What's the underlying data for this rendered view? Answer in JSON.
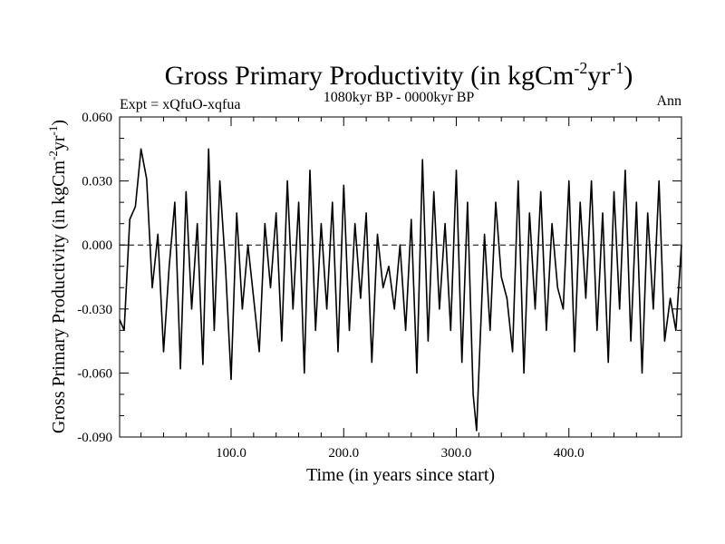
{
  "chart_data": {
    "type": "line",
    "title_main": "Gross Primary Productivity (in kgCm",
    "title_sup1": "-2",
    "title_mid": "yr",
    "title_sup2": "-1",
    "title_end": ")",
    "subtitle": "1080kyr BP - 0000kyr BP",
    "left_label": "Expt = xQfuO-xqfua",
    "right_label": "Ann",
    "xlabel": "Time (in years since start)",
    "ylabel_main": "Gross Primary Productivity (in kgCm",
    "ylabel_sup1": "-2",
    "ylabel_mid": "yr",
    "ylabel_sup2": "-1",
    "ylabel_end": ")",
    "xlim": [
      1,
      500
    ],
    "ylim": [
      -0.09,
      0.06
    ],
    "xticks": [
      100.0,
      200.0,
      300.0,
      400.0
    ],
    "xtick_labels": [
      "100.0",
      "200.0",
      "300.0",
      "400.0"
    ],
    "yticks": [
      0.06,
      0.03,
      0.0,
      -0.03,
      -0.06,
      -0.09
    ],
    "ytick_labels": [
      "0.060",
      "0.030",
      "0.000",
      "-0.030",
      "-0.060",
      "-0.090"
    ],
    "reference_line": 0.0,
    "series": [
      {
        "name": "Ann",
        "color": "#000000",
        "x": [
          1,
          5,
          10,
          15,
          20,
          25,
          30,
          35,
          40,
          45,
          50,
          55,
          60,
          65,
          70,
          75,
          80,
          85,
          90,
          95,
          100,
          105,
          110,
          115,
          120,
          125,
          130,
          135,
          140,
          145,
          150,
          155,
          160,
          165,
          170,
          175,
          180,
          185,
          190,
          195,
          200,
          205,
          210,
          215,
          220,
          225,
          230,
          235,
          240,
          245,
          250,
          255,
          260,
          265,
          270,
          275,
          280,
          285,
          290,
          295,
          300,
          305,
          310,
          315,
          318,
          320,
          325,
          330,
          335,
          340,
          345,
          350,
          355,
          360,
          365,
          370,
          375,
          380,
          385,
          390,
          395,
          400,
          405,
          410,
          415,
          420,
          425,
          430,
          435,
          440,
          445,
          450,
          455,
          460,
          465,
          470,
          475,
          480,
          485,
          490,
          495,
          500
        ],
        "values": [
          -0.035,
          -0.04,
          0.012,
          0.018,
          0.045,
          0.031,
          -0.02,
          0.005,
          -0.05,
          -0.01,
          0.02,
          -0.058,
          0.025,
          -0.03,
          0.01,
          -0.056,
          0.045,
          -0.04,
          0.03,
          -0.01,
          -0.063,
          0.015,
          -0.03,
          0.0,
          -0.025,
          -0.05,
          0.01,
          -0.02,
          0.015,
          -0.045,
          0.03,
          -0.03,
          0.02,
          -0.06,
          0.035,
          -0.04,
          0.01,
          -0.03,
          0.02,
          -0.05,
          0.028,
          -0.04,
          0.01,
          -0.025,
          0.015,
          -0.055,
          0.005,
          -0.02,
          -0.01,
          -0.03,
          0.0,
          -0.04,
          0.012,
          -0.06,
          0.04,
          -0.045,
          0.025,
          -0.03,
          0.01,
          -0.04,
          0.035,
          -0.055,
          0.02,
          -0.07,
          -0.087,
          -0.06,
          0.005,
          -0.04,
          0.02,
          -0.015,
          -0.025,
          -0.05,
          0.03,
          -0.06,
          0.015,
          -0.03,
          0.025,
          -0.04,
          0.01,
          -0.02,
          -0.03,
          0.03,
          -0.05,
          0.02,
          -0.025,
          0.03,
          -0.04,
          0.015,
          -0.055,
          0.025,
          -0.03,
          0.035,
          -0.045,
          0.02,
          -0.06,
          0.015,
          -0.03,
          0.03,
          -0.045,
          -0.025,
          -0.04,
          0.0
        ]
      }
    ]
  }
}
